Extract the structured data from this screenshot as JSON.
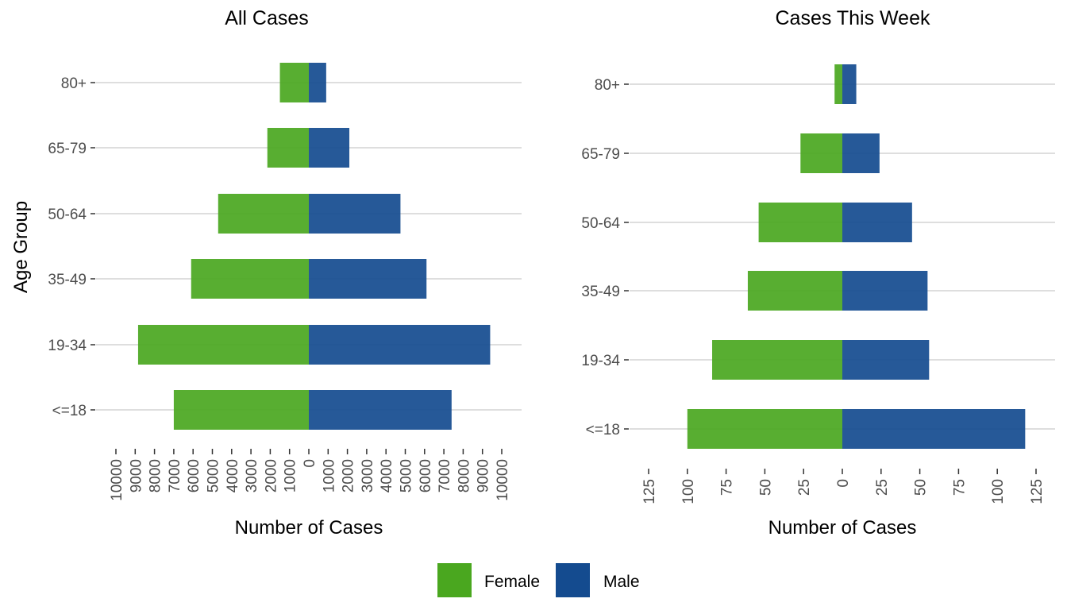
{
  "chart_data": [
    {
      "type": "bar",
      "orientation": "horizontal-diverging",
      "title": "All Cases",
      "xlabel": "Number of Cases",
      "ylabel": "Age Group",
      "categories": [
        "<=18",
        "19-34",
        "35-49",
        "50-64",
        "65-79",
        "80+"
      ],
      "series": [
        {
          "name": "Female",
          "values": [
            7000,
            8850,
            6100,
            4700,
            2150,
            1500
          ]
        },
        {
          "name": "Male",
          "values": [
            7400,
            9400,
            6100,
            4750,
            2100,
            900
          ]
        }
      ],
      "xlim": [
        -10000,
        10000
      ],
      "xticks": [
        -10000,
        -9000,
        -8000,
        -7000,
        -6000,
        -5000,
        -4000,
        -3000,
        -2000,
        -1000,
        0,
        1000,
        2000,
        3000,
        4000,
        5000,
        6000,
        7000,
        8000,
        9000,
        10000
      ],
      "xtick_labels": [
        "10000",
        "9000",
        "8000",
        "7000",
        "6000",
        "5000",
        "4000",
        "3000",
        "2000",
        "1000",
        "0",
        "1000",
        "2000",
        "3000",
        "4000",
        "5000",
        "6000",
        "7000",
        "8000",
        "9000",
        "10000"
      ],
      "grid": "horizontal"
    },
    {
      "type": "bar",
      "orientation": "horizontal-diverging",
      "title": "Cases This Week",
      "xlabel": "Number of Cases",
      "ylabel": "",
      "categories": [
        "<=18",
        "19-34",
        "35-49",
        "50-64",
        "65-79",
        "80+"
      ],
      "series": [
        {
          "name": "Female",
          "values": [
            100,
            84,
            61,
            54,
            27,
            5
          ]
        },
        {
          "name": "Male",
          "values": [
            118,
            56,
            55,
            45,
            24,
            9
          ]
        }
      ],
      "xlim": [
        -125,
        125
      ],
      "xticks": [
        -125,
        -100,
        -75,
        -50,
        -25,
        0,
        25,
        50,
        75,
        100,
        125
      ],
      "xtick_labels": [
        "125",
        "100",
        "75",
        "50",
        "25",
        "0",
        "25",
        "50",
        "75",
        "100",
        "125"
      ],
      "grid": "horizontal"
    }
  ],
  "legend": {
    "placement": "bottom",
    "items": [
      {
        "label": "Female",
        "color": "#4aa71f"
      },
      {
        "label": "Male",
        "color": "#144b8f"
      }
    ]
  },
  "colors": {
    "female": "#4aa71f",
    "male": "#144b8f",
    "grid": "#d4d4d4",
    "tick_text": "#4d4d4d"
  }
}
